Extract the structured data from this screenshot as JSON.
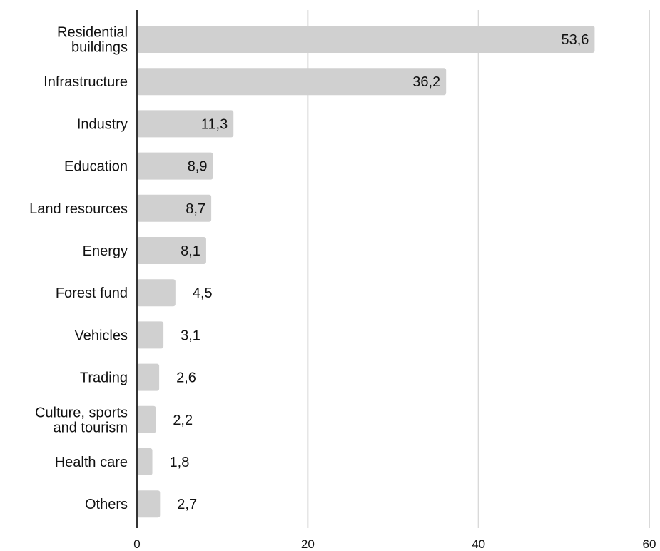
{
  "chart_data": {
    "type": "bar",
    "orientation": "horizontal",
    "categories": [
      "Residential buildings",
      "Infrastructure",
      "Industry",
      "Education",
      "Land resources",
      "Energy",
      "Forest fund",
      "Vehicles",
      "Trading",
      "Culture, sports and tourism",
      "Health care",
      "Others"
    ],
    "category_lines": [
      [
        "Residential",
        "buildings"
      ],
      [
        "Infrastructure"
      ],
      [
        "Industry"
      ],
      [
        "Education"
      ],
      [
        "Land resources"
      ],
      [
        "Energy"
      ],
      [
        "Forest fund"
      ],
      [
        "Vehicles"
      ],
      [
        "Trading"
      ],
      [
        "Culture, sports",
        "and tourism"
      ],
      [
        "Health care"
      ],
      [
        "Others"
      ]
    ],
    "values": [
      53.6,
      36.2,
      11.3,
      8.9,
      8.7,
      8.1,
      4.5,
      3.1,
      2.6,
      2.2,
      1.8,
      2.7
    ],
    "value_labels": [
      "53,6",
      "36,2",
      "11,3",
      "8,9",
      "8,7",
      "8,1",
      "4,5",
      "3,1",
      "2,6",
      "2,2",
      "1,8",
      "2,7"
    ],
    "xlim": [
      0,
      60
    ],
    "xticks": [
      0,
      20,
      40,
      60
    ],
    "xtick_labels": [
      "0",
      "20",
      "40",
      "60"
    ],
    "grid": "vertical",
    "title": "",
    "xlabel": "",
    "ylabel": "",
    "colors": {
      "bar": "#d0d0d0",
      "grid": "#d9d9d9",
      "axis": "#333333",
      "text": "#111111"
    }
  }
}
